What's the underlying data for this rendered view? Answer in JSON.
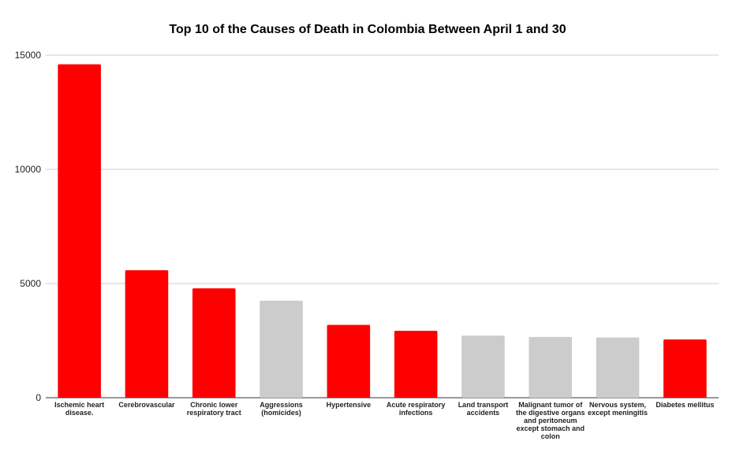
{
  "chart_data": {
    "type": "bar",
    "title": "Top 10 of the Causes of Death in Colombia Between April 1 and 30",
    "xlabel": "",
    "ylabel": "",
    "ylim": [
      0,
      15000
    ],
    "yticks": [
      "0",
      "5000",
      "10000",
      "15000"
    ],
    "grid": true,
    "legend": "none",
    "categories": [
      [
        "Ischemic heart",
        "disease."
      ],
      [
        "Cerebrovascular"
      ],
      [
        "Chronic lower",
        "respiratory tract"
      ],
      [
        "Aggressions",
        "(homicides)"
      ],
      [
        "Hypertensive"
      ],
      [
        "Acute respiratory",
        "infections"
      ],
      [
        "Land transport",
        "accidents"
      ],
      [
        "Malignant tumor of",
        "the digestive organs",
        "and peritoneum",
        "except stomach and",
        "colon"
      ],
      [
        "Nervous system,",
        "except meningitis"
      ],
      [
        "Diabetes mellitus"
      ]
    ],
    "values": [
      14600,
      5580,
      4790,
      4250,
      3190,
      2930,
      2720,
      2660,
      2640,
      2550
    ],
    "bar_colors": [
      "#ff0000",
      "#ff0000",
      "#ff0000",
      "#cccccc",
      "#ff0000",
      "#ff0000",
      "#cccccc",
      "#cccccc",
      "#cccccc",
      "#ff0000"
    ]
  }
}
